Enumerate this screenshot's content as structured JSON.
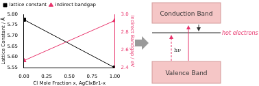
{
  "chart_data": {
    "type": "line",
    "x": [
      0,
      1
    ],
    "x_label": "Cl Mole Fraction x, AgClxBr1-x",
    "y_label": "Lattice Constant / Å",
    "y2_label": "Indirect Bandgap / eV",
    "xlim": [
      0,
      1
    ],
    "xticks": [
      {
        "value": 0,
        "label": "0.00"
      },
      {
        "value": 0.25,
        "label": "0.25"
      },
      {
        "value": 0.5,
        "label": "0.50"
      },
      {
        "value": 0.75,
        "label": "0.75"
      },
      {
        "value": 1,
        "label": "1.00"
      }
    ],
    "ylim": [
      5.55,
      5.8
    ],
    "yticks": [
      5.55,
      {
        "value": 5.6,
        "label": "5.60"
      },
      5.65,
      {
        "value": 5.7,
        "label": "5.70"
      },
      5.75,
      {
        "value": 5.8,
        "label": "5.80"
      }
    ],
    "y2lim": [
      2.4,
      3.0
    ],
    "y2ticks": [
      2.4,
      2.6,
      2.8,
      {
        "value": 3.0,
        "label": "3.0"
      }
    ],
    "legend": "upper left",
    "series": [
      {
        "name": "lattice constant",
        "color": "#000000",
        "marker": "square",
        "values": [
          5.775,
          5.55
        ]
      },
      {
        "name": "indirect bandgap",
        "color": "#e8336b",
        "marker": "triangle",
        "axis": "y2",
        "values": [
          2.48,
          2.93
        ]
      }
    ]
  },
  "diagram": {
    "conduction_band": "Conduction Band",
    "valence_band": "Valence Band",
    "hot_electrons": "hot electrons",
    "photon": "hν"
  }
}
